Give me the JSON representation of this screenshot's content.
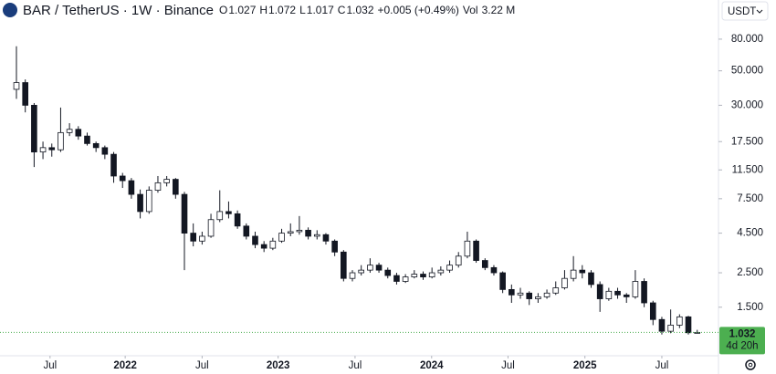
{
  "chart_data": {
    "type": "candlestick",
    "title": "BAR / TetherUS · 1W · Binance",
    "ohlc_labels": [
      "O",
      "H",
      "L",
      "C"
    ],
    "change": "+0.005 (+0.49%)",
    "volume_label": "Vol",
    "volume": "3.22 M",
    "currency": "USDT",
    "countdown": "4d 20h",
    "up_color": "#ffffff",
    "down_color": "#131722",
    "last_price_color": "#4caf50",
    "log_scale": true,
    "grid": false,
    "xlim": [
      -1.86,
      79.2
    ],
    "xticks": [
      {
        "value": 3.8,
        "label": "Jul"
      },
      {
        "value": 12.3,
        "label": "2022"
      },
      {
        "value": 21.0,
        "label": "Jul"
      },
      {
        "value": 29.6,
        "label": "2023"
      },
      {
        "value": 38.3,
        "label": "Jul"
      },
      {
        "value": 46.96,
        "label": "2024"
      },
      {
        "value": 55.6,
        "label": "Jul"
      },
      {
        "value": 64.3,
        "label": "2025"
      },
      {
        "value": 73.0,
        "label": "Jul"
      }
    ],
    "ylim": [
      0.73,
      143
    ],
    "yticks": [
      {
        "value": 80,
        "label": "80.000"
      },
      {
        "value": 50,
        "label": "50.000"
      },
      {
        "value": 30,
        "label": "30.000"
      },
      {
        "value": 17.5,
        "label": "17.500"
      },
      {
        "value": 11.5,
        "label": "11.500"
      },
      {
        "value": 7.5,
        "label": "7.500"
      },
      {
        "value": 4.5,
        "label": "4.500"
      },
      {
        "value": 2.5,
        "label": "2.500"
      },
      {
        "value": 1.5,
        "label": "1.500"
      }
    ],
    "candles": [
      [
        38,
        72,
        33,
        42
      ],
      [
        42,
        44,
        27,
        30
      ],
      [
        30,
        31,
        12,
        15
      ],
      [
        15,
        17.5,
        13.5,
        16
      ],
      [
        16,
        17,
        14,
        15.5
      ],
      [
        15.5,
        29,
        15,
        20
      ],
      [
        20,
        23,
        19,
        21
      ],
      [
        21,
        22,
        18,
        19
      ],
      [
        19,
        20,
        16.5,
        17
      ],
      [
        17,
        17.5,
        15,
        16
      ],
      [
        16,
        16.5,
        13.5,
        14.5
      ],
      [
        14.5,
        15,
        9.5,
        10.5
      ],
      [
        10.5,
        11,
        8.8,
        9.8
      ],
      [
        9.8,
        10.2,
        7.5,
        8
      ],
      [
        8,
        8.6,
        5.6,
        6.2
      ],
      [
        6.2,
        9,
        6,
        8.5
      ],
      [
        8.5,
        10.5,
        8.2,
        9.5
      ],
      [
        9.5,
        10.5,
        9,
        10
      ],
      [
        10,
        10.2,
        7.5,
        8
      ],
      [
        8,
        8.3,
        2.6,
        4.5
      ],
      [
        4.5,
        5.2,
        3.7,
        4
      ],
      [
        4,
        4.6,
        3.8,
        4.3
      ],
      [
        4.3,
        6,
        4.2,
        5.5
      ],
      [
        5.5,
        8.5,
        5.3,
        6.2
      ],
      [
        6.2,
        7.2,
        5.6,
        6
      ],
      [
        6,
        6.3,
        4.8,
        5
      ],
      [
        5,
        5.2,
        4.1,
        4.3
      ],
      [
        4.3,
        4.6,
        3.6,
        3.8
      ],
      [
        3.8,
        4,
        3.4,
        3.6
      ],
      [
        3.6,
        4.2,
        3.5,
        4
      ],
      [
        4,
        4.8,
        3.9,
        4.5
      ],
      [
        4.5,
        5.2,
        4.3,
        4.6
      ],
      [
        4.6,
        5.8,
        4.4,
        4.7
      ],
      [
        4.7,
        4.9,
        4.1,
        4.3
      ],
      [
        4.3,
        4.7,
        4.1,
        4.4
      ],
      [
        4.4,
        4.5,
        3.8,
        4
      ],
      [
        4,
        4.1,
        3.2,
        3.4
      ],
      [
        3.4,
        3.5,
        2.2,
        2.3
      ],
      [
        2.3,
        2.6,
        2.2,
        2.5
      ],
      [
        2.5,
        2.8,
        2.4,
        2.6
      ],
      [
        2.6,
        3.1,
        2.5,
        2.8
      ],
      [
        2.8,
        2.9,
        2.5,
        2.6
      ],
      [
        2.6,
        2.7,
        2.3,
        2.4
      ],
      [
        2.4,
        2.5,
        2.1,
        2.2
      ],
      [
        2.2,
        2.45,
        2.15,
        2.35
      ],
      [
        2.35,
        2.6,
        2.3,
        2.45
      ],
      [
        2.45,
        2.55,
        2.25,
        2.35
      ],
      [
        2.35,
        2.7,
        2.3,
        2.5
      ],
      [
        2.5,
        2.75,
        2.4,
        2.6
      ],
      [
        2.6,
        3,
        2.5,
        2.8
      ],
      [
        2.8,
        3.4,
        2.7,
        3.2
      ],
      [
        3.2,
        4.6,
        3.1,
        4
      ],
      [
        4,
        4.1,
        2.9,
        3
      ],
      [
        3,
        3.1,
        2.6,
        2.7
      ],
      [
        2.7,
        2.8,
        2.4,
        2.5
      ],
      [
        2.5,
        2.55,
        1.85,
        1.95
      ],
      [
        1.95,
        2.1,
        1.6,
        1.8
      ],
      [
        1.8,
        2,
        1.7,
        1.85
      ],
      [
        1.85,
        1.9,
        1.55,
        1.7
      ],
      [
        1.7,
        1.85,
        1.6,
        1.75
      ],
      [
        1.75,
        1.95,
        1.7,
        1.85
      ],
      [
        1.85,
        2.2,
        1.8,
        2
      ],
      [
        2,
        2.6,
        1.95,
        2.3
      ],
      [
        2.3,
        3.2,
        2.2,
        2.6
      ],
      [
        2.6,
        2.8,
        2.3,
        2.5
      ],
      [
        2.5,
        2.6,
        2,
        2.1
      ],
      [
        2.1,
        2.2,
        1.4,
        1.7
      ],
      [
        1.7,
        2,
        1.65,
        1.9
      ],
      [
        1.9,
        2,
        1.7,
        1.8
      ],
      [
        1.8,
        1.85,
        1.6,
        1.75
      ],
      [
        1.75,
        2.6,
        1.7,
        2.2
      ],
      [
        2.2,
        2.3,
        1.5,
        1.6
      ],
      [
        1.6,
        1.65,
        1.15,
        1.25
      ],
      [
        1.25,
        1.3,
        1.0,
        1.05
      ],
      [
        1.05,
        1.45,
        1.02,
        1.15
      ],
      [
        1.15,
        1.35,
        1.1,
        1.3
      ],
      [
        1.3,
        1.32,
        1.0,
        1.027
      ],
      [
        1.027,
        1.072,
        1.017,
        1.032
      ]
    ]
  }
}
